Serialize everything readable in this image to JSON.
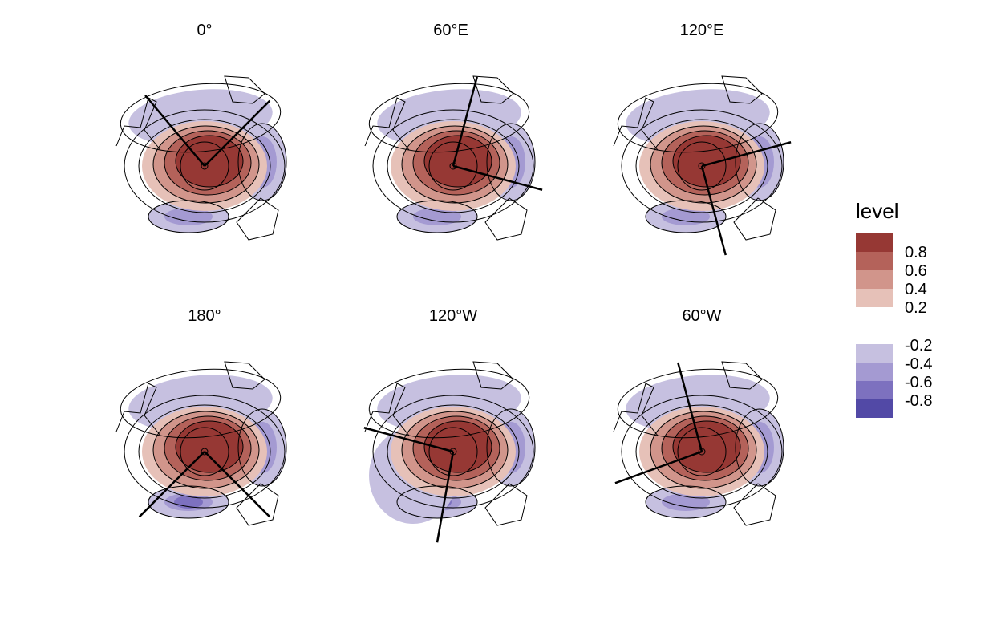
{
  "chart_data": {
    "type": "contour-map-panels",
    "projection": "south polar stereographic",
    "panels": [
      {
        "title": "0°",
        "line_bearings_deg": [
          -40,
          45
        ]
      },
      {
        "title": "60°E",
        "line_bearings_deg": [
          15,
          105
        ]
      },
      {
        "title": "120°E",
        "line_bearings_deg": [
          75,
          165
        ]
      },
      {
        "title": "180°",
        "line_bearings_deg": [
          135,
          225
        ]
      },
      {
        "title": "120°W",
        "line_bearings_deg": [
          190,
          285
        ]
      },
      {
        "title": "60°W",
        "line_bearings_deg": [
          250,
          345
        ]
      }
    ],
    "legend": {
      "title": "level",
      "positive": [
        {
          "label": "0.8",
          "color": "#963834"
        },
        {
          "label": "0.6",
          "color": "#b4625a"
        },
        {
          "label": "0.4",
          "color": "#d1958b"
        },
        {
          "label": "0.2",
          "color": "#e6c1b8"
        }
      ],
      "negative": [
        {
          "label": "-0.2",
          "color": "#c6c0e0"
        },
        {
          "label": "-0.4",
          "color": "#a49ad2"
        },
        {
          "label": "-0.6",
          "color": "#7d71bf"
        },
        {
          "label": "-0.8",
          "color": "#5249a6"
        }
      ]
    }
  }
}
